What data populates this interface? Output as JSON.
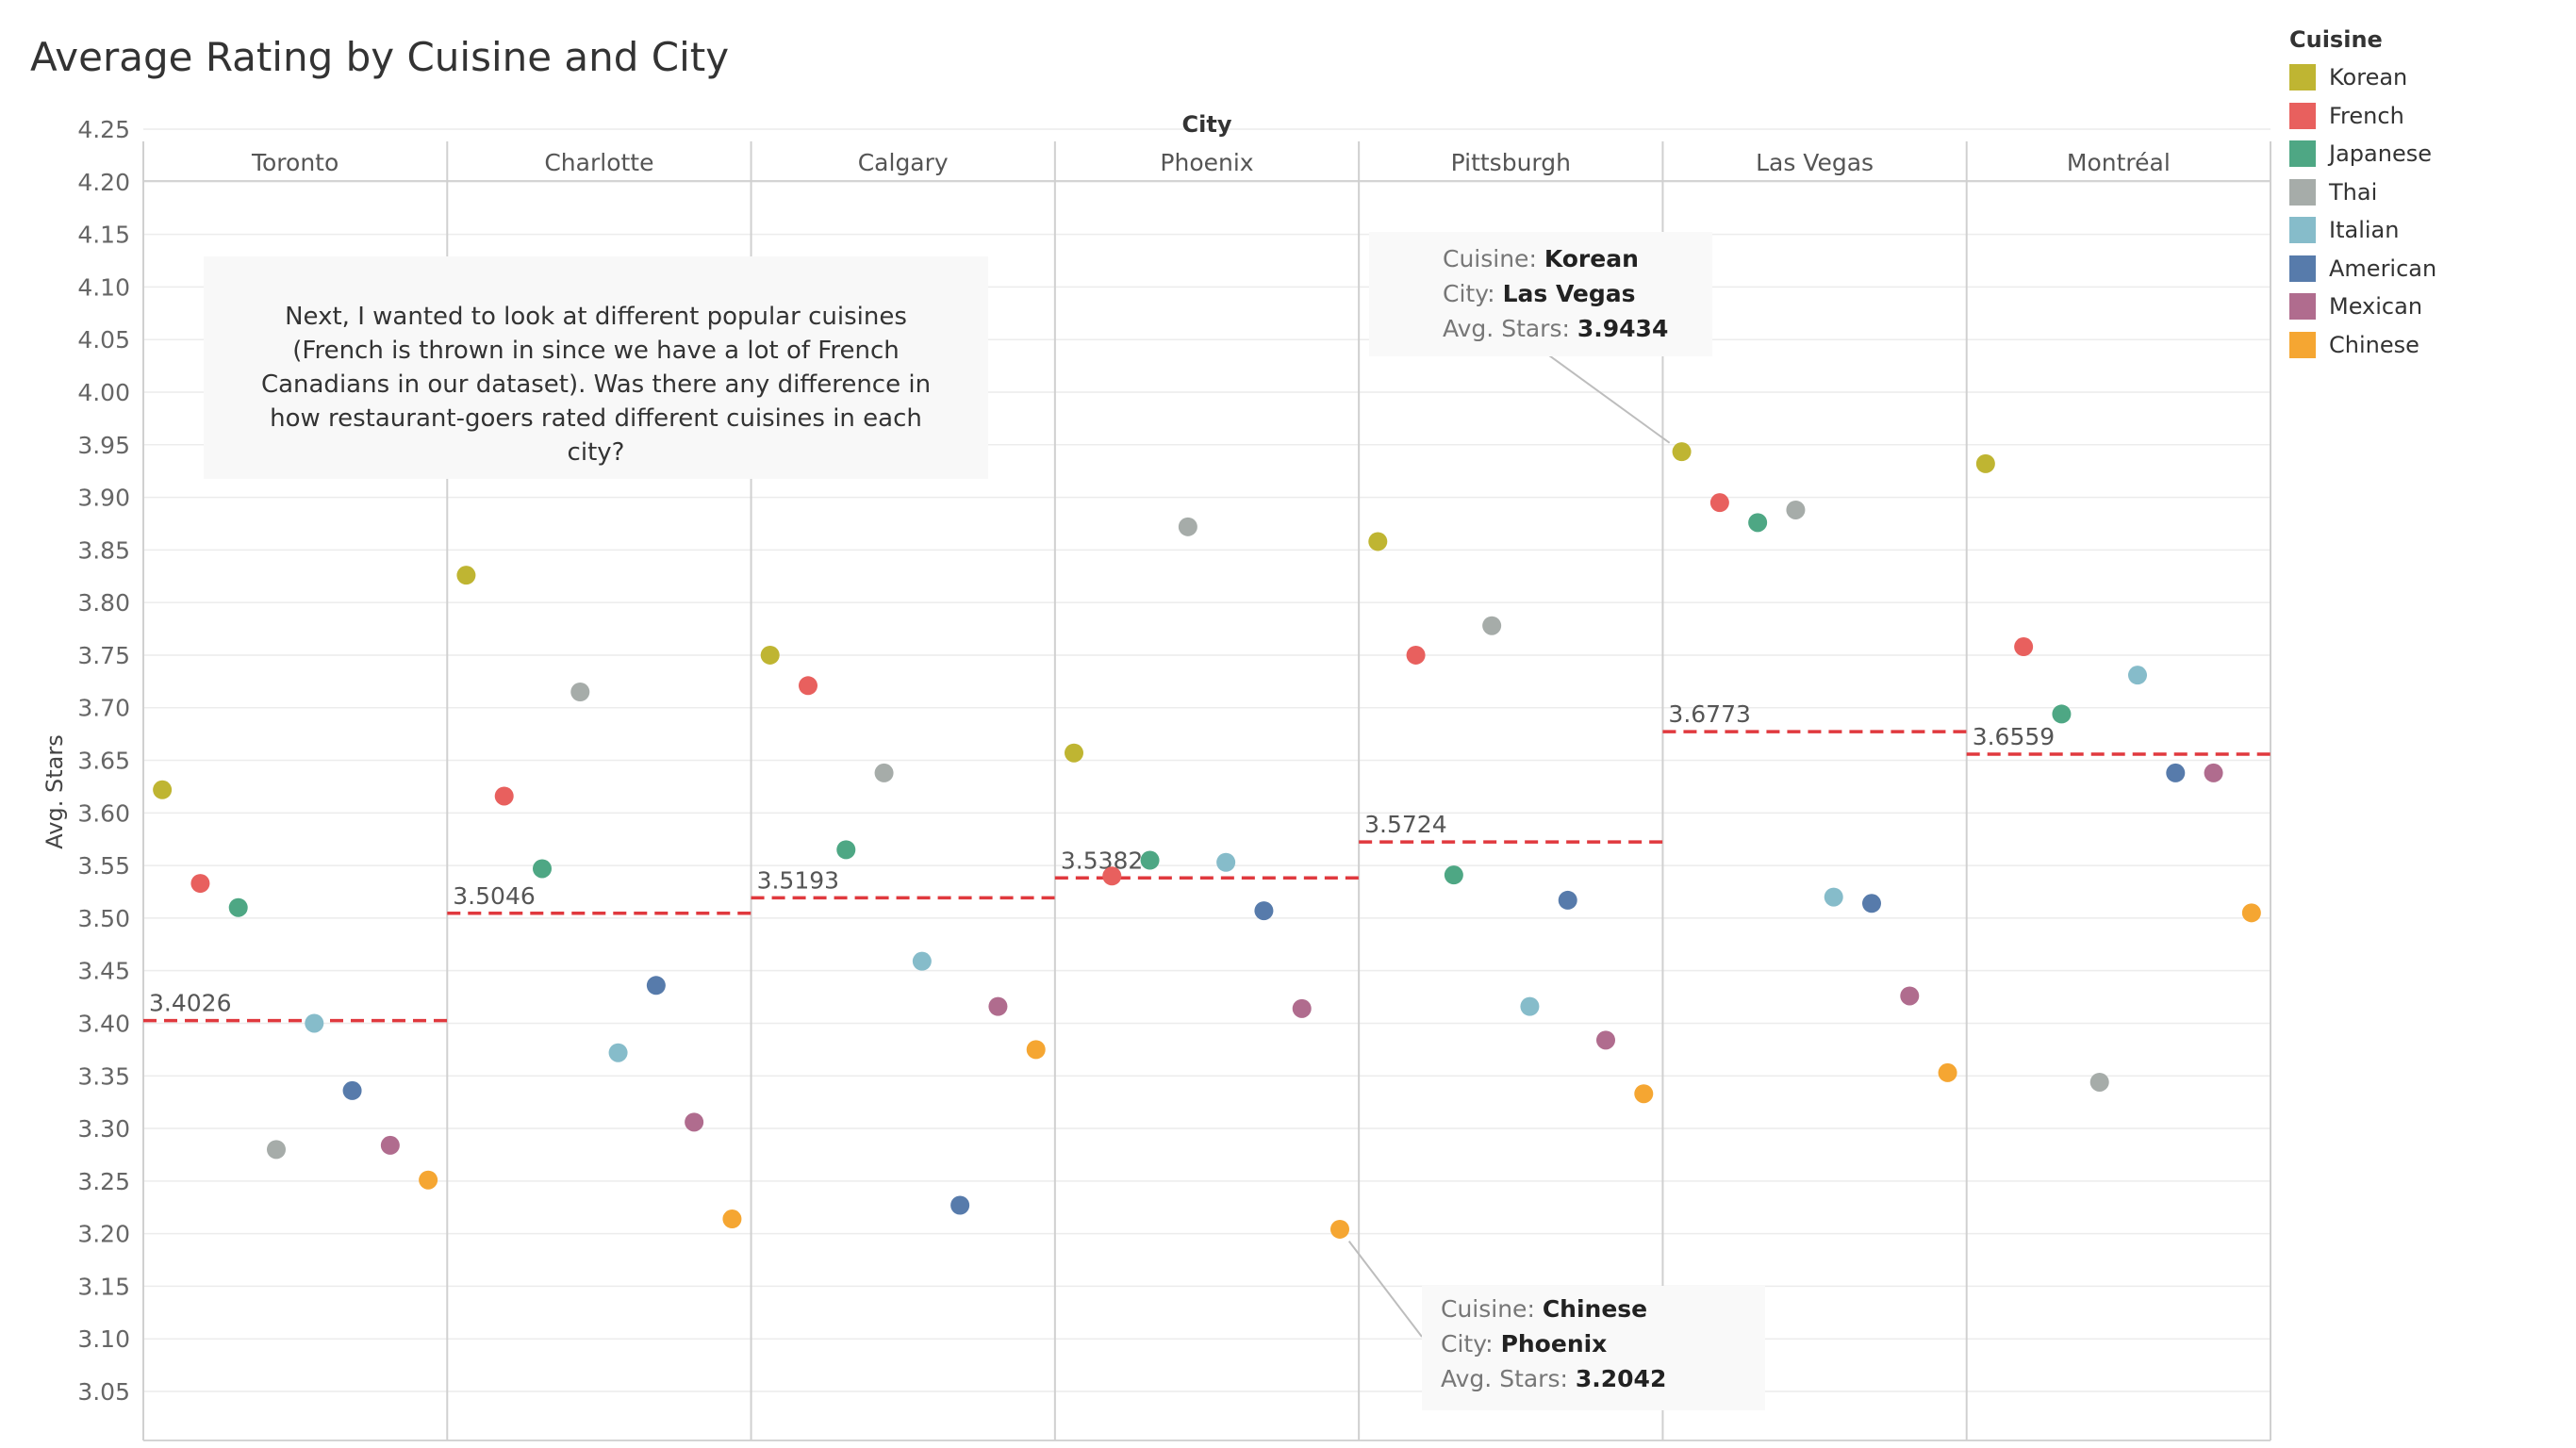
{
  "chart_data": {
    "type": "scatter",
    "title": "Average Rating by Cuisine and City",
    "column_header": "City",
    "ylabel": "Avg. Stars",
    "ylim": [
      3.0,
      4.27
    ],
    "yticks": [
      "3.05",
      "3.10",
      "3.15",
      "3.20",
      "3.25",
      "3.30",
      "3.35",
      "3.40",
      "3.45",
      "3.50",
      "3.55",
      "3.60",
      "3.65",
      "3.70",
      "3.75",
      "3.80",
      "3.85",
      "3.90",
      "3.95",
      "4.00",
      "4.05",
      "4.10",
      "4.15",
      "4.20",
      "4.25"
    ],
    "grid": true,
    "legend_title": "Cuisine",
    "legend_position": "top-right",
    "cities": [
      "Toronto",
      "Charlotte",
      "Calgary",
      "Phoenix",
      "Pittsburgh",
      "Las Vegas",
      "Montréal"
    ],
    "series": [
      {
        "name": "Korean",
        "color": "#bfb532",
        "values": [
          3.622,
          3.826,
          3.75,
          3.657,
          3.858,
          3.9434,
          3.932
        ]
      },
      {
        "name": "French",
        "color": "#e8605e",
        "values": [
          3.533,
          3.616,
          3.721,
          3.54,
          3.75,
          3.895,
          3.758
        ]
      },
      {
        "name": "Japanese",
        "color": "#4ea784",
        "values": [
          3.51,
          3.547,
          3.565,
          3.555,
          3.541,
          3.876,
          3.694
        ]
      },
      {
        "name": "Thai",
        "color": "#a6aca9",
        "values": [
          3.28,
          3.715,
          3.638,
          3.872,
          3.778,
          3.888,
          3.344
        ]
      },
      {
        "name": "Italian",
        "color": "#86bcca",
        "values": [
          3.4,
          3.372,
          3.459,
          3.553,
          3.416,
          3.52,
          3.731
        ]
      },
      {
        "name": "American",
        "color": "#577bab",
        "values": [
          3.336,
          3.436,
          3.227,
          3.507,
          3.517,
          3.514,
          3.638
        ]
      },
      {
        "name": "Mexican",
        "color": "#b06c8e",
        "values": [
          3.284,
          3.306,
          3.416,
          3.414,
          3.384,
          3.426,
          3.638
        ]
      },
      {
        "name": "Chinese",
        "color": "#f5a632",
        "values": [
          3.251,
          3.214,
          3.375,
          3.2042,
          3.333,
          3.353,
          3.505
        ]
      }
    ],
    "reference_lines": [
      {
        "city": "Toronto",
        "value": 3.4026,
        "label": "3.4026"
      },
      {
        "city": "Charlotte",
        "value": 3.5046,
        "label": "3.5046"
      },
      {
        "city": "Calgary",
        "value": 3.5193,
        "label": "3.5193"
      },
      {
        "city": "Phoenix",
        "value": 3.5382,
        "label": "3.5382"
      },
      {
        "city": "Pittsburgh",
        "value": 3.5724,
        "label": "3.5724"
      },
      {
        "city": "Las Vegas",
        "value": 3.6773,
        "label": "3.6773"
      },
      {
        "city": "Montréal",
        "value": 3.6559,
        "label": "3.6559"
      }
    ],
    "reference_line_color": "#e0393e"
  },
  "annotation": {
    "text": "Next, I wanted to look at different popular cuisines (French is thrown in since we have a lot of French Canadians in our dataset). Was there any difference in how restaurant-goers rated different cuisines in each city?"
  },
  "tooltips": [
    {
      "cuisine_label": "Cuisine:",
      "cuisine": "Korean",
      "city_label": "City:",
      "city": "Las Vegas",
      "value_label": "Avg. Stars:",
      "value": "3.9434",
      "point_series": "Korean",
      "point_city": "Las Vegas"
    },
    {
      "cuisine_label": "Cuisine:",
      "cuisine": "Chinese",
      "city_label": "City:",
      "city": "Phoenix",
      "value_label": "Avg. Stars:",
      "value": "3.2042",
      "point_series": "Chinese",
      "point_city": "Phoenix"
    }
  ]
}
